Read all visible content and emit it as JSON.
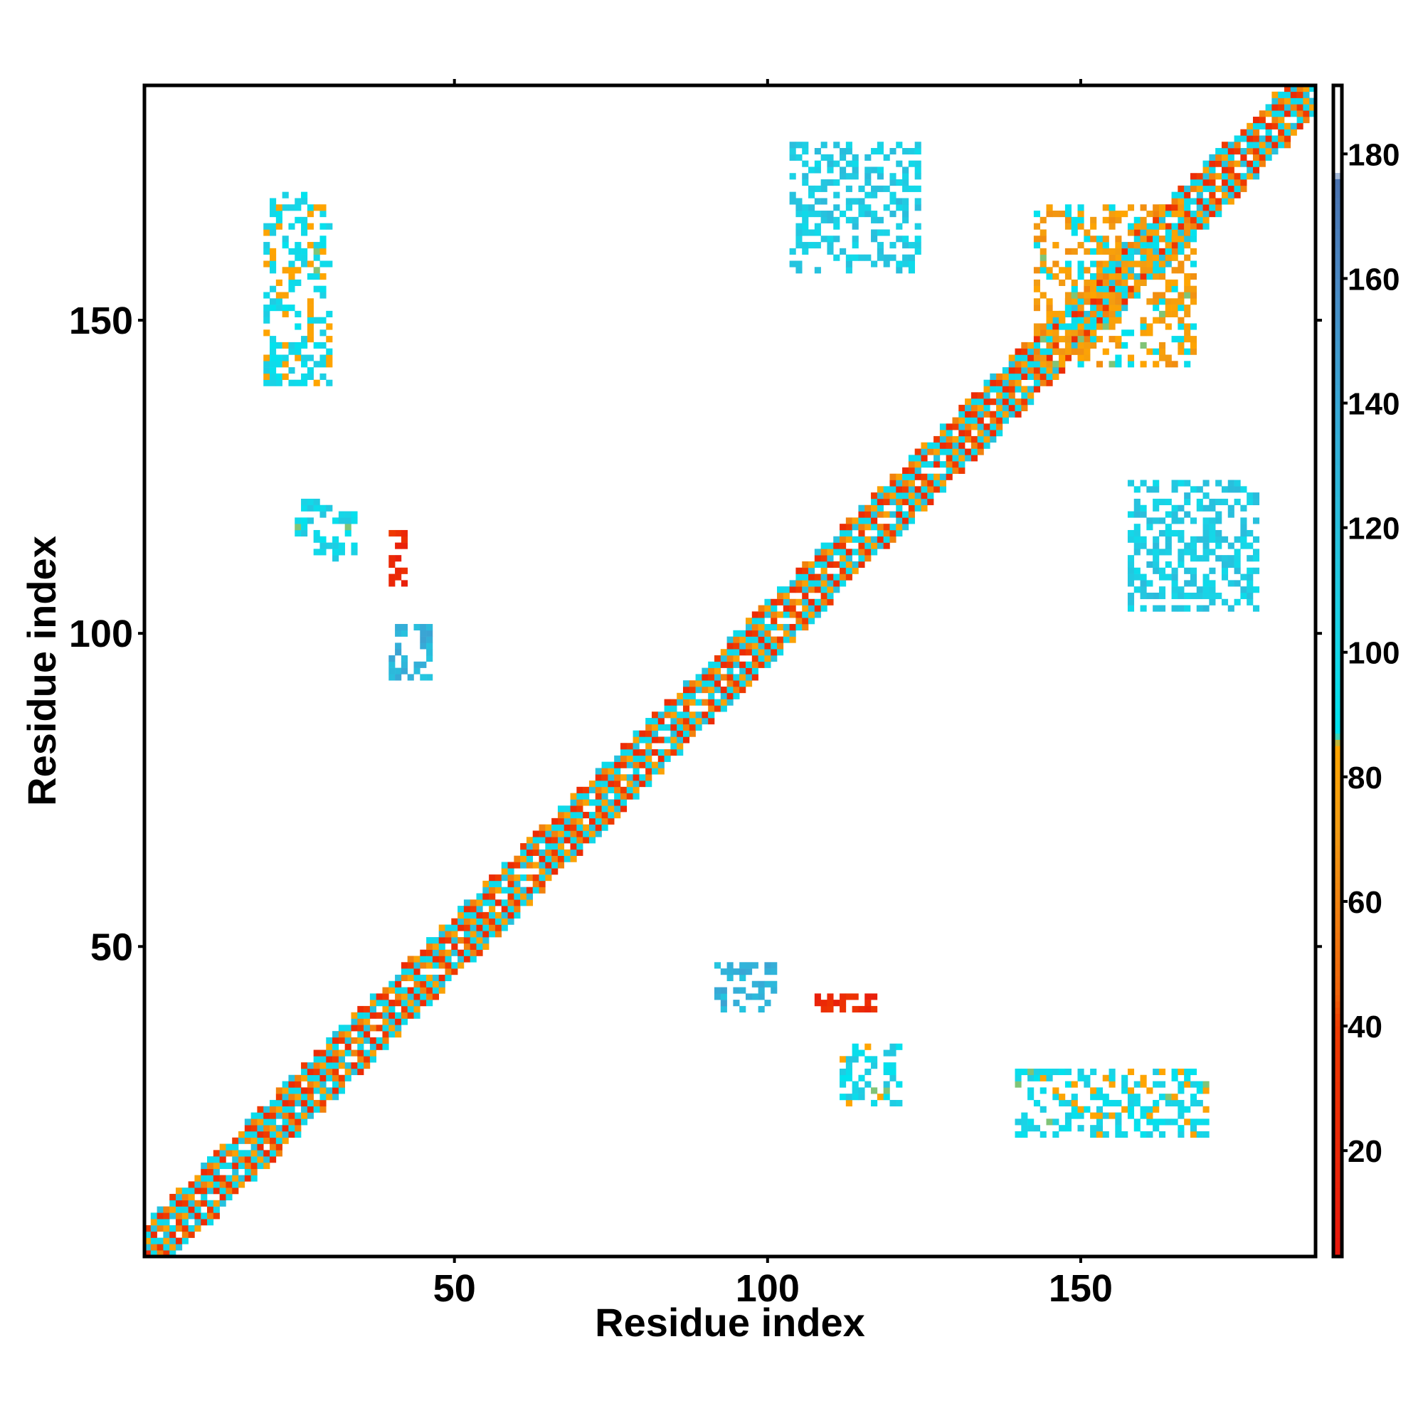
{
  "chart_data": {
    "type": "heatmap",
    "title": "",
    "xlabel": "Residue index",
    "ylabel": "Residue index",
    "xlim": [
      1,
      187
    ],
    "ylim": [
      1,
      187
    ],
    "x_ticks": [
      50,
      100,
      150
    ],
    "y_ticks": [
      50,
      100,
      150
    ],
    "colorbar": {
      "range": [
        3,
        191
      ],
      "ticks": [
        20,
        40,
        60,
        80,
        100,
        120,
        140,
        160,
        180
      ],
      "stops": [
        {
          "value": 3,
          "color": "#e8170d"
        },
        {
          "value": 40,
          "color": "#ee3a00"
        },
        {
          "value": 45,
          "color": "#f0620a"
        },
        {
          "value": 72,
          "color": "#f29c12"
        },
        {
          "value": 85,
          "color": "#ffa500"
        },
        {
          "value": 87,
          "color": "#00e3ee"
        },
        {
          "value": 104,
          "color": "#1ad3e6"
        },
        {
          "value": 120,
          "color": "#28c0dd"
        },
        {
          "value": 140,
          "color": "#38a8d6"
        },
        {
          "value": 160,
          "color": "#4a88c4"
        },
        {
          "value": 176,
          "color": "#4a72b0"
        },
        {
          "value": 177,
          "color": "#ffffff"
        },
        {
          "value": 191,
          "color": "#ffffff"
        }
      ]
    },
    "structure": {
      "diagonal_band": [
        1,
        187
      ],
      "offdiagonal_blocks": [
        {
          "x": [
            40,
            46
          ],
          "y": [
            93,
            101
          ],
          "value": 130
        },
        {
          "x": [
            92,
            101
          ],
          "y": [
            40,
            47
          ],
          "value": 130
        },
        {
          "x": [
            25,
            34
          ],
          "y": [
            112,
            121
          ],
          "value": 100
        },
        {
          "x": [
            112,
            121
          ],
          "y": [
            25,
            34
          ],
          "value": 100
        },
        {
          "x": [
            40,
            42
          ],
          "y": [
            108,
            117
          ],
          "value": 25
        },
        {
          "x": [
            108,
            117
          ],
          "y": [
            40,
            42
          ],
          "value": 25
        },
        {
          "x": [
            104,
            124
          ],
          "y": [
            158,
            178
          ],
          "value": 110
        },
        {
          "x": [
            158,
            178
          ],
          "y": [
            104,
            124
          ],
          "value": 110
        },
        {
          "x": [
            20,
            30
          ],
          "y": [
            140,
            170
          ],
          "value": 95
        },
        {
          "x": [
            140,
            170
          ],
          "y": [
            20,
            30
          ],
          "value": 95
        },
        {
          "x": [
            143,
            168
          ],
          "y": [
            143,
            168
          ],
          "value": 80
        }
      ]
    }
  }
}
